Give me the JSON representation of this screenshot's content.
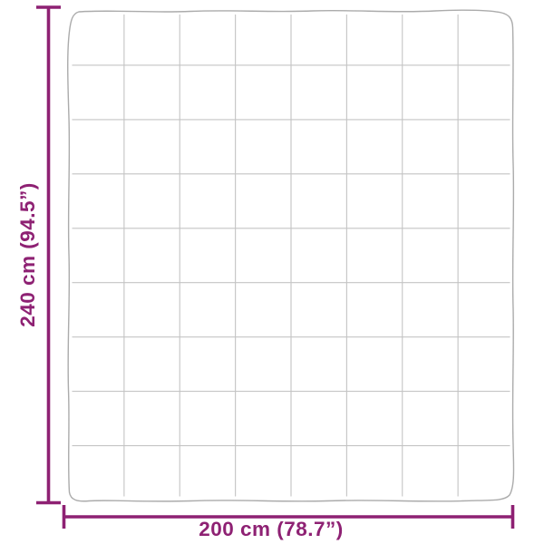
{
  "diagram": {
    "title": "blanket-dimension-diagram",
    "height_dimension": {
      "label": "240 cm (94.5”)",
      "value_cm": "240",
      "value_inches": "94.5"
    },
    "width_dimension": {
      "label": "200 cm (78.7”)",
      "value_cm": "200",
      "value_inches": "78.7"
    },
    "quilt_grid": {
      "columns": 8,
      "rows": 9
    },
    "colors": {
      "dimension_accent": "#8e2173",
      "blanket_outline": "#ababab",
      "grid_line": "#c4c4c4",
      "background": "#ffffff"
    }
  }
}
